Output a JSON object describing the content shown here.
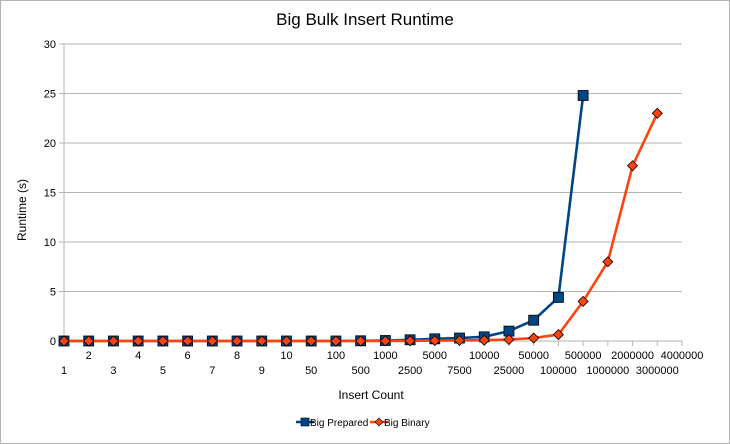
{
  "chart_data": {
    "type": "line",
    "title": "Big Bulk Insert Runtime",
    "xlabel": "Insert Count",
    "ylabel": "Runtime (s)",
    "ylim": [
      0,
      30
    ],
    "yticks": [
      "0",
      "5",
      "10",
      "15",
      "20",
      "25",
      "30"
    ],
    "grid": "horizontal",
    "legend_position": "bottom",
    "categories": [
      "1",
      "2",
      "3",
      "4",
      "5",
      "6",
      "7",
      "8",
      "9",
      "10",
      "50",
      "100",
      "500",
      "1000",
      "2500",
      "5000",
      "7500",
      "10000",
      "25000",
      "50000",
      "100000",
      "500000",
      "1000000",
      "2000000",
      "3000000",
      "4000000"
    ],
    "series": [
      {
        "name": "Big Prepared",
        "color": "#004586",
        "marker": "square",
        "values": [
          0,
          0,
          0,
          0,
          0,
          0,
          0,
          0,
          0,
          0,
          0,
          0,
          0.02,
          0.05,
          0.12,
          0.22,
          0.3,
          0.42,
          1.0,
          2.1,
          4.4,
          24.8,
          null,
          null,
          null,
          null
        ]
      },
      {
        "name": "Big Binary",
        "color": "#ff420e",
        "marker": "diamond",
        "values": [
          0,
          0,
          0,
          0,
          0,
          0,
          0,
          0,
          0,
          0,
          0,
          0,
          0,
          0.01,
          0.02,
          0.04,
          0.06,
          0.08,
          0.15,
          0.3,
          0.65,
          4.0,
          8.0,
          17.7,
          23.0,
          null
        ]
      }
    ]
  }
}
